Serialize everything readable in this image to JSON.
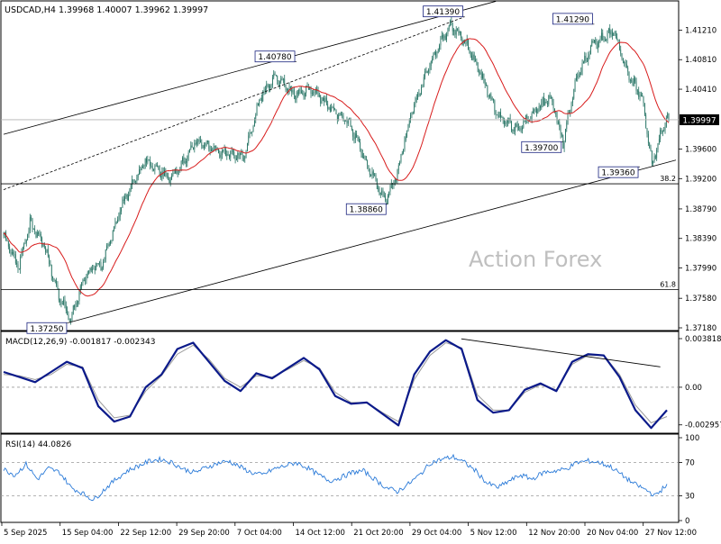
{
  "symbol_header": "USDCAD,H4  1.39968 1.40007 1.39962 1.39997",
  "watermark": "Action Forex",
  "colors": {
    "candle": "#1f6f5f",
    "ma": "#d81b1b",
    "macd": "#0b1a8a",
    "signal": "#9a9a9a",
    "rsi": "#2a7ad8",
    "grid": "#000000",
    "text": "#000000"
  },
  "chart_data": [
    {
      "type": "candlestick",
      "title": "USDCAD,H4  1.39968 1.40007 1.39962 1.39997",
      "ylim": [
        1.3718,
        1.4152
      ],
      "y_ticks": [
        "1.41210",
        "1.40810",
        "1.40410",
        "1.39600",
        "1.39200",
        "1.38790",
        "1.38390",
        "1.37990",
        "1.37580",
        "1.37180"
      ],
      "y_tick_values": [
        1.4121,
        1.4081,
        1.4041,
        1.396,
        1.392,
        1.3879,
        1.3839,
        1.3799,
        1.3758,
        1.3718
      ],
      "x_ticks": [
        "5 Sep 2025",
        "15 Sep 04:00",
        "22 Sep 12:00",
        "29 Sep 20:00",
        "7 Oct 04:00",
        "14 Oct 12:00",
        "21 Oct 20:00",
        "29 Oct 04:00",
        "5 Nov 12:00",
        "12 Nov 20:00",
        "20 Nov 04:00",
        "27 Nov 12:00"
      ],
      "current_price": "1.39997",
      "current_price_value": 1.39997,
      "price_path_anchors": [
        {
          "t": 0,
          "p": 1.3845
        },
        {
          "t": 12,
          "p": 1.38
        },
        {
          "t": 22,
          "p": 1.386
        },
        {
          "t": 34,
          "p": 1.383
        },
        {
          "t": 46,
          "p": 1.376
        },
        {
          "t": 56,
          "p": 1.373
        },
        {
          "t": 68,
          "p": 1.379
        },
        {
          "t": 82,
          "p": 1.3805
        },
        {
          "t": 100,
          "p": 1.389
        },
        {
          "t": 118,
          "p": 1.3945
        },
        {
          "t": 140,
          "p": 1.392
        },
        {
          "t": 160,
          "p": 1.397
        },
        {
          "t": 180,
          "p": 1.3955
        },
        {
          "t": 200,
          "p": 1.395
        },
        {
          "t": 214,
          "p": 1.403
        },
        {
          "t": 226,
          "p": 1.406
        },
        {
          "t": 242,
          "p": 1.4035
        },
        {
          "t": 258,
          "p": 1.404
        },
        {
          "t": 272,
          "p": 1.4015
        },
        {
          "t": 288,
          "p": 1.3995
        },
        {
          "t": 304,
          "p": 1.3935
        },
        {
          "t": 318,
          "p": 1.389
        },
        {
          "t": 328,
          "p": 1.393
        },
        {
          "t": 340,
          "p": 1.401
        },
        {
          "t": 356,
          "p": 1.408
        },
        {
          "t": 372,
          "p": 1.413
        },
        {
          "t": 386,
          "p": 1.41
        },
        {
          "t": 398,
          "p": 1.406
        },
        {
          "t": 412,
          "p": 1.4005
        },
        {
          "t": 428,
          "p": 1.3985
        },
        {
          "t": 444,
          "p": 1.4015
        },
        {
          "t": 456,
          "p": 1.403
        },
        {
          "t": 466,
          "p": 1.397
        },
        {
          "t": 476,
          "p": 1.405
        },
        {
          "t": 490,
          "p": 1.41
        },
        {
          "t": 508,
          "p": 1.412
        },
        {
          "t": 520,
          "p": 1.406
        },
        {
          "t": 532,
          "p": 1.403
        },
        {
          "t": 540,
          "p": 1.394
        },
        {
          "t": 548,
          "p": 1.3985
        },
        {
          "t": 553,
          "p": 1.39997
        }
      ],
      "annotations": [
        {
          "label": "1.37250",
          "t": 54,
          "p": 1.3725
        },
        {
          "label": "1.40780",
          "t": 244,
          "p": 1.4078
        },
        {
          "label": "1.41390",
          "t": 384,
          "p": 1.4139
        },
        {
          "label": "1.38860",
          "t": 320,
          "p": 1.3886
        },
        {
          "label": "1.41290",
          "t": 492,
          "p": 1.4129
        },
        {
          "label": "1.39700",
          "t": 466,
          "p": 1.397
        },
        {
          "label": "1.39360",
          "t": 530,
          "p": 1.3936
        }
      ],
      "fib_levels": [
        {
          "label": "38.2",
          "p": 1.3913
        },
        {
          "label": "61.8",
          "p": 1.377
        }
      ],
      "channel_lines": [
        {
          "style": "solid",
          "from": {
            "t": 0,
            "p": 1.398
          },
          "to": {
            "t": 410,
            "p": 1.416
          }
        },
        {
          "style": "dashed",
          "from": {
            "t": 0,
            "p": 1.3905
          },
          "to": {
            "t": 384,
            "p": 1.4139
          }
        },
        {
          "style": "solid",
          "from": {
            "t": 54,
            "p": 1.3725
          },
          "to": {
            "t": 560,
            "p": 1.3945
          }
        }
      ]
    },
    {
      "type": "line",
      "title": "MACD(12,26,9) -0.001817 -0.002343",
      "ylim": [
        -0.0034,
        0.0041
      ],
      "y_ticks": [
        "0.003818",
        "0.00",
        "-0.002957"
      ],
      "y_tick_values": [
        0.003818,
        0,
        -0.002957
      ],
      "series": [
        {
          "name": "MACD",
          "values": [
            0.0012,
            0.0008,
            0.0004,
            0.0012,
            0.002,
            0.0015,
            -0.0015,
            -0.0027,
            -0.0023,
            0.0,
            0.001,
            0.003,
            0.0035,
            0.002,
            0.0005,
            -0.0003,
            0.0011,
            0.0007,
            0.0015,
            0.0023,
            0.0014,
            -0.0007,
            -0.0013,
            -0.0012,
            -0.0021,
            -0.003,
            0.001,
            0.0028,
            0.0037,
            0.003,
            -0.001,
            -0.002,
            -0.0018,
            -0.0002,
            0.0003,
            -0.0003,
            0.002,
            0.0026,
            0.0025,
            0.0008,
            -0.0018,
            -0.0032,
            -0.0018
          ]
        },
        {
          "name": "Signal",
          "values": [
            0.001,
            0.0009,
            0.0006,
            0.001,
            0.0018,
            0.0016,
            -0.001,
            -0.0024,
            -0.0022,
            -0.0003,
            0.0009,
            0.0026,
            0.0033,
            0.0022,
            0.0007,
            0.0,
            0.0009,
            0.0008,
            0.0014,
            0.0021,
            0.0015,
            -0.0004,
            -0.0012,
            -0.0012,
            -0.002,
            -0.0027,
            0.0006,
            0.0025,
            0.0035,
            0.0031,
            -0.0006,
            -0.0018,
            -0.0018,
            -0.0004,
            0.0002,
            -0.0002,
            0.0018,
            0.0025,
            0.0025,
            0.001,
            -0.0014,
            -0.0028,
            -0.0023
          ]
        }
      ],
      "trendline": {
        "from": {
          "t": 0.69,
          "v": 0.0038
        },
        "to": {
          "t": 0.99,
          "v": 0.0016
        }
      }
    },
    {
      "type": "line",
      "title": "RSI(14) 44.0826",
      "ylim": [
        0,
        100
      ],
      "y_ticks": [
        "100",
        "70",
        "30",
        "0"
      ],
      "y_tick_values": [
        100,
        70,
        30,
        0
      ],
      "series": [
        {
          "name": "RSI",
          "values": [
            62,
            55,
            68,
            50,
            63,
            58,
            40,
            33,
            25,
            38,
            50,
            60,
            66,
            72,
            74,
            70,
            62,
            58,
            64,
            69,
            72,
            65,
            58,
            55,
            62,
            66,
            70,
            64,
            55,
            48,
            52,
            58,
            60,
            50,
            40,
            35,
            44,
            55,
            70,
            74,
            77,
            70,
            60,
            45,
            40,
            48,
            55,
            50,
            58,
            60,
            62,
            70,
            72,
            70,
            65,
            55,
            45,
            38,
            30,
            44
          ]
        }
      ]
    }
  ]
}
